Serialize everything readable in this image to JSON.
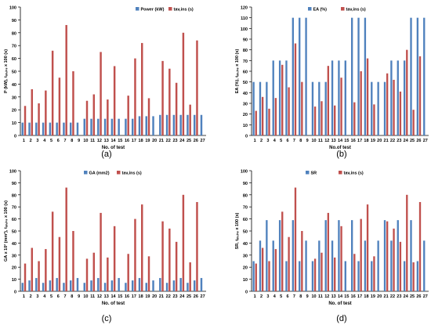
{
  "colors": {
    "blue": "#4f81bd",
    "red": "#c0504d",
    "axis": "#000000",
    "grid": "#bfbfbf"
  },
  "chart_data": [
    {
      "type": "bar",
      "panel_label": "(a)",
      "ylabel": "P (kW), tₐᵥ,ᵢₙₛ x 100 (s)",
      "xlabel": "No. of test",
      "ylim": [
        0,
        100
      ],
      "yticks": [
        0,
        10,
        20,
        30,
        40,
        50,
        60,
        70,
        80,
        90,
        100
      ],
      "legend_position": "top-right",
      "categories": [
        "1",
        "2",
        "3",
        "4",
        "5",
        "6",
        "7",
        "8",
        "9",
        "10",
        "11",
        "12",
        "13",
        "14",
        "15",
        "16",
        "17",
        "18",
        "19",
        "20",
        "21",
        "22",
        "23",
        "24",
        "25",
        "26",
        "27"
      ],
      "series": [
        {
          "name": "Power (kW)",
          "color": "#4f81bd",
          "values": [
            10,
            10,
            10,
            10,
            10,
            10,
            10,
            10,
            10,
            13,
            13,
            13,
            13,
            13,
            13,
            13,
            13,
            15,
            15,
            15,
            16,
            16,
            16,
            16,
            16,
            16,
            16
          ]
        },
        {
          "name": "tav,ins (s)",
          "color": "#c0504d",
          "values": [
            23,
            36,
            25,
            35,
            66,
            45,
            86,
            50,
            0,
            27,
            32,
            65,
            28,
            54,
            0,
            31,
            60,
            72,
            29,
            0,
            58,
            52,
            41,
            80,
            24,
            74,
            0
          ]
        }
      ]
    },
    {
      "type": "bar",
      "panel_label": "(b)",
      "ylabel": "EA (%), tₐᵥ,ᵢₙₛ x 100 (s)",
      "xlabel": "No.of test",
      "ylim": [
        0,
        120
      ],
      "yticks": [
        0,
        10,
        20,
        30,
        40,
        50,
        60,
        70,
        80,
        90,
        100,
        110,
        120
      ],
      "legend_position": "top-center",
      "categories": [
        "1",
        "2",
        "3",
        "4",
        "5",
        "6",
        "7",
        "8",
        "9",
        "10",
        "11",
        "12",
        "13",
        "14",
        "15",
        "16",
        "17",
        "18",
        "19",
        "20",
        "21",
        "22",
        "23",
        "24",
        "25",
        "26",
        "27"
      ],
      "series": [
        {
          "name": "EA (%)",
          "color": "#4f81bd",
          "values": [
            50,
            50,
            50,
            70,
            70,
            70,
            110,
            110,
            110,
            50,
            50,
            50,
            70,
            70,
            70,
            110,
            110,
            110,
            50,
            50,
            50,
            70,
            70,
            70,
            110,
            110,
            110
          ]
        },
        {
          "name": "tav,ins (s)",
          "color": "#c0504d",
          "values": [
            23,
            36,
            25,
            35,
            66,
            45,
            86,
            50,
            0,
            27,
            32,
            65,
            28,
            54,
            0,
            31,
            60,
            72,
            29,
            0,
            58,
            52,
            41,
            80,
            24,
            74,
            0
          ]
        }
      ]
    },
    {
      "type": "bar",
      "panel_label": "(c)",
      "ylabel": "GA x 10² (mm²), tₐᵥ,ᵢₙₛ x 100 (s)",
      "xlabel": "No. of test",
      "ylim": [
        0,
        100
      ],
      "yticks": [
        0,
        10,
        20,
        30,
        40,
        50,
        60,
        70,
        80,
        90,
        100
      ],
      "legend_position": "top-center",
      "categories": [
        "1",
        "2",
        "3",
        "4",
        "5",
        "6",
        "7",
        "8",
        "9",
        "10",
        "11",
        "12",
        "13",
        "14",
        "15",
        "16",
        "17",
        "18",
        "19",
        "20",
        "21",
        "22",
        "23",
        "24",
        "25",
        "26",
        "27"
      ],
      "series": [
        {
          "name": "GA (mm2)",
          "color": "#4f81bd",
          "values": [
            7,
            9,
            11,
            7,
            9,
            11,
            7,
            9,
            11,
            7,
            9,
            11,
            7,
            9,
            11,
            7,
            9,
            11,
            7,
            9,
            11,
            7,
            9,
            11,
            7,
            9,
            11
          ]
        },
        {
          "name": "tav,ins (s)",
          "color": "#c0504d",
          "values": [
            23,
            36,
            25,
            35,
            66,
            45,
            86,
            50,
            0,
            27,
            32,
            65,
            28,
            54,
            0,
            31,
            60,
            72,
            29,
            0,
            58,
            52,
            41,
            80,
            24,
            74,
            0
          ]
        }
      ]
    },
    {
      "type": "bar",
      "panel_label": "(d)",
      "ylabel": "SR, tₐᵥ,ᵢₙₛ x 100 (s)",
      "xlabel": "No. of test",
      "ylim": [
        0,
        100
      ],
      "yticks": [
        0,
        10,
        20,
        30,
        40,
        50,
        60,
        70,
        80,
        90,
        100
      ],
      "legend_position": "top-center",
      "categories": [
        "1",
        "2",
        "3",
        "4",
        "5",
        "6",
        "7",
        "8",
        "9",
        "10",
        "11",
        "12",
        "13",
        "14",
        "15",
        "16",
        "17",
        "18",
        "19",
        "20",
        "21",
        "22",
        "23",
        "24",
        "25",
        "26",
        "27"
      ],
      "series": [
        {
          "name": "SR",
          "color": "#4f81bd",
          "values": [
            25,
            42,
            59,
            42,
            59,
            25,
            59,
            25,
            42,
            25,
            42,
            59,
            42,
            59,
            25,
            59,
            25,
            42,
            25,
            42,
            59,
            42,
            59,
            25,
            59,
            25,
            42
          ]
        },
        {
          "name": "tav,ins (s)",
          "color": "#c0504d",
          "values": [
            23,
            36,
            25,
            35,
            66,
            45,
            86,
            50,
            0,
            27,
            32,
            65,
            28,
            54,
            0,
            31,
            60,
            72,
            29,
            0,
            58,
            52,
            41,
            80,
            24,
            74,
            0
          ]
        }
      ]
    }
  ]
}
